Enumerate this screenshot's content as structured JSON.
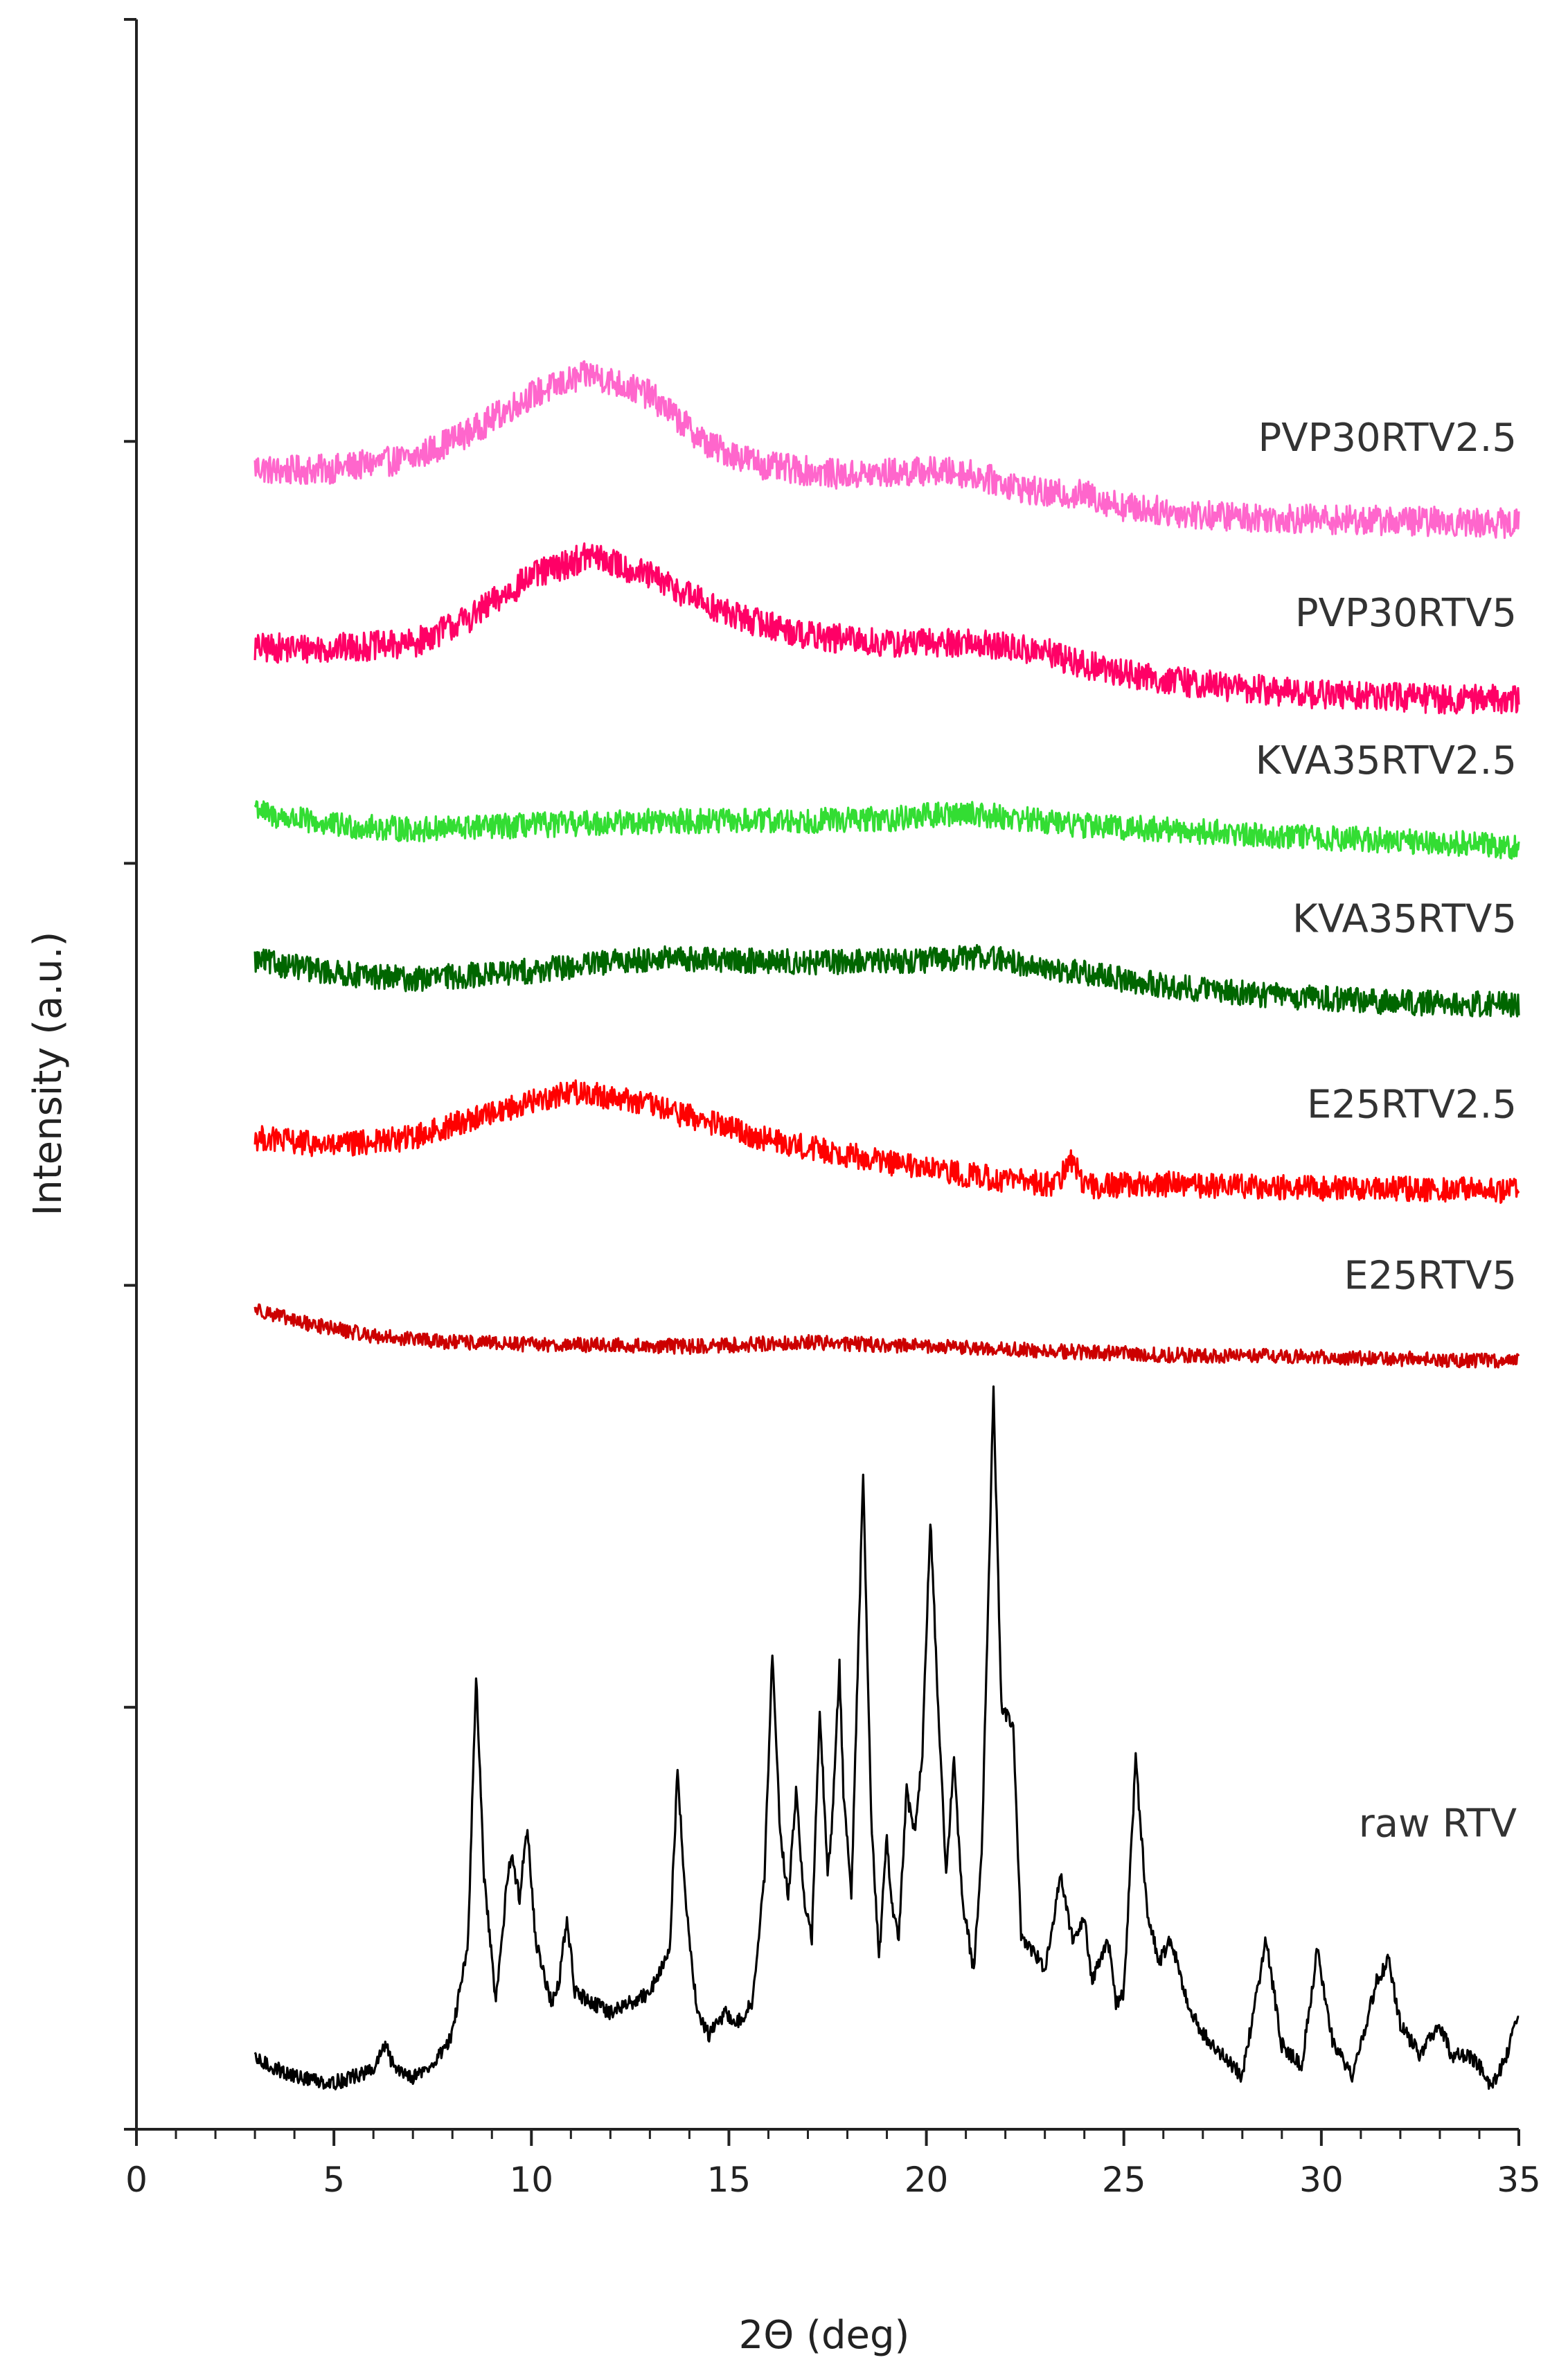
{
  "chart_data": {
    "type": "line",
    "title": "",
    "xlabel": "2Θ (deg)",
    "ylabel": "Intensity (a.u.)",
    "xlim": [
      0,
      35
    ],
    "x_ticks": [
      "0",
      "5",
      "10",
      "15",
      "20",
      "25",
      "30",
      "35"
    ],
    "x_minor_step": 1,
    "y_ticks_count": 5,
    "grid": false,
    "legend": "inline-right",
    "y_note": "relative intensity; stacked traces on arbitrary units scale 0-100",
    "series": [
      {
        "name": "PVP30RTV2.5",
        "color": "#FF66CC",
        "noise": 0.7,
        "points": [
          [
            3,
            78.8
          ],
          [
            3.5,
            78.6
          ],
          [
            5,
            78.7
          ],
          [
            7,
            79.2
          ],
          [
            8.5,
            80.5
          ],
          [
            10,
            82.2
          ],
          [
            11.5,
            83.2
          ],
          [
            13,
            82.2
          ],
          [
            14.5,
            79.8
          ],
          [
            16,
            78.8
          ],
          [
            18,
            78.4
          ],
          [
            20,
            78.6
          ],
          [
            21,
            78.5
          ],
          [
            23,
            77.5
          ],
          [
            24,
            77.5
          ],
          [
            25,
            76.9
          ],
          [
            27,
            76.5
          ],
          [
            30,
            76.3
          ],
          [
            33,
            76.2
          ],
          [
            35,
            76.1
          ]
        ]
      },
      {
        "name": "PVP30RTV5",
        "color": "#FF0066",
        "noise": 0.7,
        "points": [
          [
            3,
            70.2
          ],
          [
            5,
            70.2
          ],
          [
            7,
            70.4
          ],
          [
            8.5,
            71.7
          ],
          [
            10,
            73.6
          ],
          [
            11.5,
            74.6
          ],
          [
            13,
            73.6
          ],
          [
            15,
            71.8
          ],
          [
            17,
            70.8
          ],
          [
            19,
            70.4
          ],
          [
            21,
            70.5
          ],
          [
            23,
            70
          ],
          [
            24,
            69.4
          ],
          [
            26,
            68.7
          ],
          [
            28,
            68.3
          ],
          [
            30,
            68
          ],
          [
            33,
            67.8
          ],
          [
            35,
            67.8
          ]
        ]
      },
      {
        "name": "KVA35RTV2.5",
        "color": "#33DD33",
        "noise": 0.6,
        "points": [
          [
            3,
            62.8
          ],
          [
            3.3,
            62.3
          ],
          [
            5,
            61.8
          ],
          [
            7,
            61.6
          ],
          [
            10,
            61.8
          ],
          [
            13,
            62
          ],
          [
            16,
            62
          ],
          [
            19,
            62.1
          ],
          [
            21,
            62.4
          ],
          [
            23,
            62
          ],
          [
            24,
            61.8
          ],
          [
            27,
            61.5
          ],
          [
            30,
            61.2
          ],
          [
            33,
            61
          ],
          [
            35,
            60.8
          ]
        ]
      },
      {
        "name": "KVA35RTV5",
        "color": "#006600",
        "noise": 0.6,
        "points": [
          [
            3,
            55.4
          ],
          [
            5,
            54.8
          ],
          [
            7,
            54.5
          ],
          [
            10,
            54.9
          ],
          [
            13,
            55.5
          ],
          [
            17,
            55.3
          ],
          [
            20,
            55.4
          ],
          [
            21.5,
            55.6
          ],
          [
            23,
            55
          ],
          [
            24,
            54.8
          ],
          [
            26,
            54.2
          ],
          [
            29,
            53.7
          ],
          [
            32,
            53.4
          ],
          [
            35,
            53.3
          ]
        ]
      },
      {
        "name": "E25RTV2.5",
        "color": "#FF0000",
        "noise": 0.6,
        "points": [
          [
            3,
            47
          ],
          [
            5,
            46.6
          ],
          [
            7,
            47
          ],
          [
            9,
            48.2
          ],
          [
            11,
            49.2
          ],
          [
            12.5,
            48.8
          ],
          [
            14,
            48
          ],
          [
            16,
            46.9
          ],
          [
            18,
            46.2
          ],
          [
            20,
            45.5
          ],
          [
            22,
            45
          ],
          [
            23.3,
            44.8
          ],
          [
            23.7,
            46
          ],
          [
            24,
            44.7
          ],
          [
            26,
            44.8
          ],
          [
            30,
            44.6
          ],
          [
            35,
            44.5
          ]
        ]
      },
      {
        "name": "E25RTV5",
        "color": "#CC0000",
        "noise": 0.35,
        "points": [
          [
            3,
            38.9
          ],
          [
            4,
            38.3
          ],
          [
            6,
            37.6
          ],
          [
            8,
            37.3
          ],
          [
            10,
            37.2
          ],
          [
            14,
            37.1
          ],
          [
            17,
            37.3
          ],
          [
            20,
            37.1
          ],
          [
            23,
            36.9
          ],
          [
            26,
            36.7
          ],
          [
            30,
            36.6
          ],
          [
            35,
            36.4
          ]
        ]
      },
      {
        "name": "raw RTV",
        "color": "#000000",
        "noise": 0.35,
        "points": [
          [
            3,
            3.3
          ],
          [
            4,
            2.5
          ],
          [
            5,
            2.2
          ],
          [
            6,
            2.8
          ],
          [
            6.3,
            4
          ],
          [
            6.5,
            3
          ],
          [
            7,
            2.5
          ],
          [
            7.5,
            3
          ],
          [
            8,
            4.5
          ],
          [
            8.4,
            9
          ],
          [
            8.6,
            21.5
          ],
          [
            8.8,
            12
          ],
          [
            9.1,
            6
          ],
          [
            9.4,
            12
          ],
          [
            9.5,
            13
          ],
          [
            9.7,
            11
          ],
          [
            9.9,
            14.5
          ],
          [
            10.1,
            9
          ],
          [
            10.5,
            6
          ],
          [
            10.7,
            7
          ],
          [
            10.9,
            10
          ],
          [
            11.1,
            6.5
          ],
          [
            12,
            5.5
          ],
          [
            13,
            6.5
          ],
          [
            13.5,
            8.5
          ],
          [
            13.7,
            17
          ],
          [
            13.9,
            11
          ],
          [
            14.2,
            5.5
          ],
          [
            14.5,
            4.5
          ],
          [
            14.9,
            5.5
          ],
          [
            15.2,
            5
          ],
          [
            15.6,
            6
          ],
          [
            15.9,
            12
          ],
          [
            16.1,
            22.5
          ],
          [
            16.3,
            14
          ],
          [
            16.5,
            11
          ],
          [
            16.7,
            16
          ],
          [
            16.9,
            11
          ],
          [
            17.1,
            9
          ],
          [
            17.3,
            20
          ],
          [
            17.5,
            12
          ],
          [
            17.6,
            14
          ],
          [
            17.8,
            22
          ],
          [
            17.9,
            16
          ],
          [
            18.1,
            11
          ],
          [
            18.4,
            31
          ],
          [
            18.6,
            15
          ],
          [
            18.8,
            8
          ],
          [
            19,
            14
          ],
          [
            19.1,
            11
          ],
          [
            19.3,
            9
          ],
          [
            19.5,
            16
          ],
          [
            19.7,
            14
          ],
          [
            19.9,
            18
          ],
          [
            20.1,
            29
          ],
          [
            20.3,
            20
          ],
          [
            20.5,
            12
          ],
          [
            20.7,
            17.5
          ],
          [
            20.9,
            11
          ],
          [
            21.2,
            7.5
          ],
          [
            21.4,
            13
          ],
          [
            21.7,
            35
          ],
          [
            21.9,
            20
          ],
          [
            22.2,
            19
          ],
          [
            22.4,
            9
          ],
          [
            22.7,
            8.5
          ],
          [
            23,
            7.5
          ],
          [
            23.4,
            12
          ],
          [
            23.7,
            9
          ],
          [
            24,
            10
          ],
          [
            24.2,
            7
          ],
          [
            24.6,
            9
          ],
          [
            24.8,
            6
          ],
          [
            25,
            6.5
          ],
          [
            25.3,
            17.5
          ],
          [
            25.6,
            10
          ],
          [
            25.9,
            8
          ],
          [
            26.2,
            9
          ],
          [
            26.6,
            6
          ],
          [
            27,
            4.5
          ],
          [
            27.5,
            3.5
          ],
          [
            28,
            2.5
          ],
          [
            28.6,
            9
          ],
          [
            29,
            4
          ],
          [
            29.5,
            3
          ],
          [
            29.9,
            8.5
          ],
          [
            30.3,
            4
          ],
          [
            30.8,
            2.5
          ],
          [
            31.4,
            7
          ],
          [
            31.7,
            8
          ],
          [
            32,
            5
          ],
          [
            32.5,
            3.5
          ],
          [
            33,
            5
          ],
          [
            33.3,
            3.5
          ],
          [
            33.7,
            3.5
          ],
          [
            34,
            3
          ],
          [
            34.3,
            2
          ],
          [
            34.7,
            3.5
          ],
          [
            35,
            5.5
          ]
        ]
      }
    ]
  }
}
